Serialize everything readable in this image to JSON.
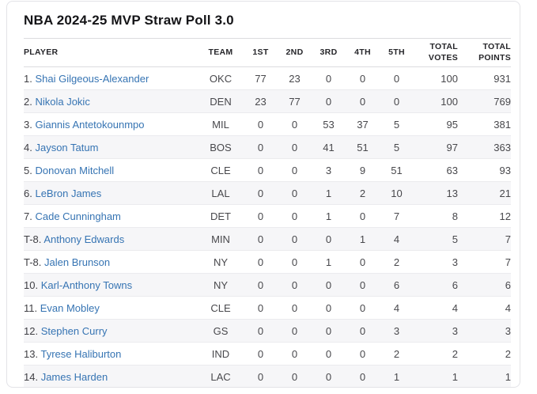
{
  "page": {
    "title": "NBA 2024-25 MVP Straw Poll 3.0"
  },
  "colors": {
    "link_blue": "#3674b3",
    "title_text": "#141417",
    "header_text": "#26262a",
    "body_text": "#48484c",
    "row_stripe": "#f6f6f8",
    "card_border": "#e3e3e7",
    "row_divider": "#ebebee"
  },
  "chart_data": {
    "type": "table",
    "title": "NBA 2024-25 MVP Straw Poll 3.0",
    "columns": [
      "PLAYER",
      "TEAM",
      "1ST",
      "2ND",
      "3RD",
      "4TH",
      "5TH",
      "TOTAL VOTES",
      "TOTAL POINTS"
    ],
    "rows": [
      {
        "rank": "1.",
        "player": "Shai Gilgeous-Alexander",
        "team": "OKC",
        "first": "77",
        "second": "23",
        "third": "0",
        "fourth": "0",
        "fifth": "0",
        "total_votes": "100",
        "total_points": "931"
      },
      {
        "rank": "2.",
        "player": "Nikola Jokic",
        "team": "DEN",
        "first": "23",
        "second": "77",
        "third": "0",
        "fourth": "0",
        "fifth": "0",
        "total_votes": "100",
        "total_points": "769"
      },
      {
        "rank": "3.",
        "player": "Giannis Antetokounmpo",
        "team": "MIL",
        "first": "0",
        "second": "0",
        "third": "53",
        "fourth": "37",
        "fifth": "5",
        "total_votes": "95",
        "total_points": "381"
      },
      {
        "rank": "4.",
        "player": "Jayson Tatum",
        "team": "BOS",
        "first": "0",
        "second": "0",
        "third": "41",
        "fourth": "51",
        "fifth": "5",
        "total_votes": "97",
        "total_points": "363"
      },
      {
        "rank": "5.",
        "player": "Donovan Mitchell",
        "team": "CLE",
        "first": "0",
        "second": "0",
        "third": "3",
        "fourth": "9",
        "fifth": "51",
        "total_votes": "63",
        "total_points": "93"
      },
      {
        "rank": "6.",
        "player": "LeBron James",
        "team": "LAL",
        "first": "0",
        "second": "0",
        "third": "1",
        "fourth": "2",
        "fifth": "10",
        "total_votes": "13",
        "total_points": "21"
      },
      {
        "rank": "7.",
        "player": "Cade Cunningham",
        "team": "DET",
        "first": "0",
        "second": "0",
        "third": "1",
        "fourth": "0",
        "fifth": "7",
        "total_votes": "8",
        "total_points": "12"
      },
      {
        "rank": "T-8.",
        "player": "Anthony Edwards",
        "team": "MIN",
        "first": "0",
        "second": "0",
        "third": "0",
        "fourth": "1",
        "fifth": "4",
        "total_votes": "5",
        "total_points": "7"
      },
      {
        "rank": "T-8.",
        "player": "Jalen Brunson",
        "team": "NY",
        "first": "0",
        "second": "0",
        "third": "1",
        "fourth": "0",
        "fifth": "2",
        "total_votes": "3",
        "total_points": "7"
      },
      {
        "rank": "10.",
        "player": "Karl-Anthony Towns",
        "team": "NY",
        "first": "0",
        "second": "0",
        "third": "0",
        "fourth": "0",
        "fifth": "6",
        "total_votes": "6",
        "total_points": "6"
      },
      {
        "rank": "11.",
        "player": "Evan Mobley",
        "team": "CLE",
        "first": "0",
        "second": "0",
        "third": "0",
        "fourth": "0",
        "fifth": "4",
        "total_votes": "4",
        "total_points": "4"
      },
      {
        "rank": "12.",
        "player": "Stephen Curry",
        "team": "GS",
        "first": "0",
        "second": "0",
        "third": "0",
        "fourth": "0",
        "fifth": "3",
        "total_votes": "3",
        "total_points": "3"
      },
      {
        "rank": "13.",
        "player": "Tyrese Haliburton",
        "team": "IND",
        "first": "0",
        "second": "0",
        "third": "0",
        "fourth": "0",
        "fifth": "2",
        "total_votes": "2",
        "total_points": "2"
      },
      {
        "rank": "14.",
        "player": "James Harden",
        "team": "LAC",
        "first": "0",
        "second": "0",
        "third": "0",
        "fourth": "0",
        "fifth": "1",
        "total_votes": "1",
        "total_points": "1"
      }
    ]
  }
}
